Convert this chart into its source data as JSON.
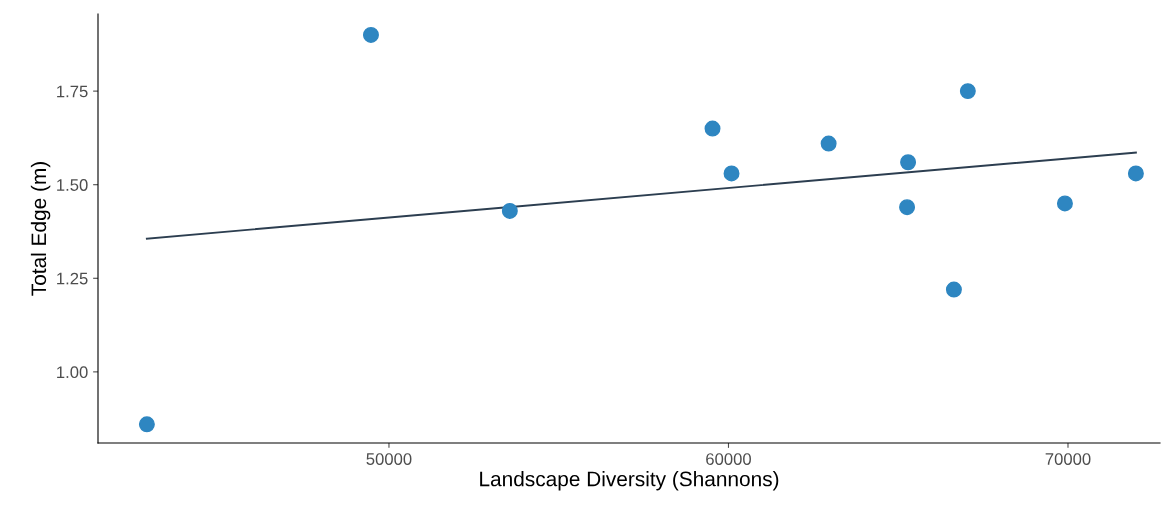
{
  "chart_data": {
    "type": "scatter",
    "xlabel": "Landscape Diversity (Shannons)",
    "ylabel": "Total Edge (m)",
    "xlim": [
      41430,
      72710
    ],
    "ylim": [
      0.81,
      1.956
    ],
    "xticks": [
      50000,
      60000,
      70000
    ],
    "yticks": [
      {
        "value": 1.0,
        "label": "1.00"
      },
      {
        "value": 1.25,
        "label": "1.25"
      },
      {
        "value": 1.5,
        "label": "1.50"
      },
      {
        "value": 1.75,
        "label": "1.75"
      }
    ],
    "grid": false,
    "legend": false,
    "series": [
      {
        "marker": "circle",
        "color": "#2e86c1",
        "x": [
          42870,
          49470,
          53560,
          59530,
          60090,
          62950,
          65290,
          65260,
          66640,
          67050,
          69910,
          72000
        ],
        "values": [
          0.86,
          1.9,
          1.43,
          1.65,
          1.53,
          1.61,
          1.56,
          1.44,
          1.22,
          1.75,
          1.45,
          1.53
        ]
      },
      {
        "type": "line",
        "color": "#2c3e50",
        "line_style": "solid",
        "x": [
          42870,
          72000
        ],
        "values": [
          1.356,
          1.586
        ]
      }
    ]
  }
}
